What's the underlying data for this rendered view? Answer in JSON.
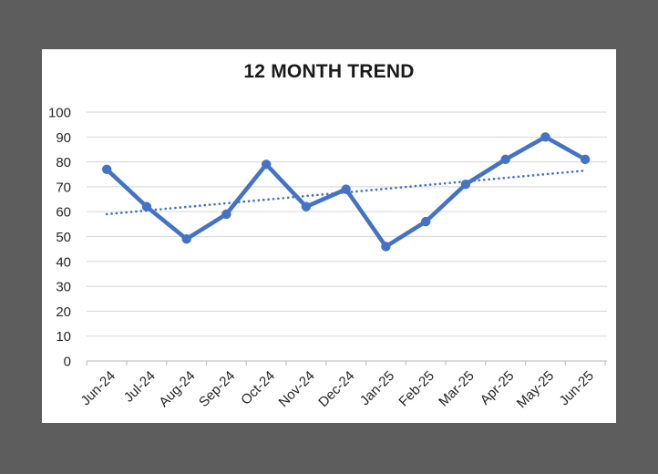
{
  "window": {
    "background_color": "#5d5d5d",
    "panel_color": "#ffffff"
  },
  "chart_data": {
    "type": "line",
    "title": "12 MONTH TREND",
    "categories": [
      "Jun-24",
      "Jul-24",
      "Aug-24",
      "Sep-24",
      "Oct-24",
      "Nov-24",
      "Dec-24",
      "Jan-25",
      "Feb-25",
      "Mar-25",
      "Apr-25",
      "May-25",
      "Jun-25"
    ],
    "series": [
      {
        "name": "12 month trend",
        "values": [
          77,
          62,
          49,
          59,
          79,
          62,
          69,
          46,
          56,
          71,
          81,
          90,
          81
        ],
        "marker": "circle"
      }
    ],
    "trendline": {
      "style": "dotted",
      "start_value": 59,
      "end_value": 76.5
    },
    "xlabel": "",
    "ylabel": "",
    "ylim": [
      0,
      100
    ],
    "yticks": [
      0,
      10,
      20,
      30,
      40,
      50,
      60,
      70,
      80,
      90,
      100
    ],
    "grid": true,
    "legend_position": "none",
    "x_label_rotation_deg": 45,
    "colors": {
      "line": "#4472C4",
      "trendline": "#4472C4",
      "gridline": "#DCDCDC",
      "axis": "#C3C3C3",
      "tick_label": "#262626",
      "title": "#1a1a1a"
    }
  }
}
